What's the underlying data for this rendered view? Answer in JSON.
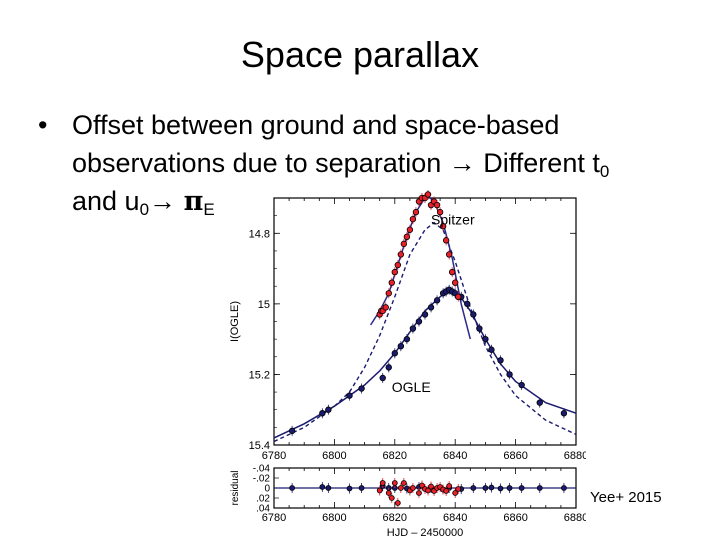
{
  "slide": {
    "title": "Space parallax",
    "bullet_line1": "Offset between ground and space-based",
    "bullet_line2_pre": "observations due to separation",
    "bullet_line2_post": "Different t",
    "t_sub": "0",
    "bullet_line3_pre": "and u",
    "u_sub": "0",
    "pi_symbol": "π",
    "pi_sub": "E",
    "arrow": "→",
    "credit": "Yee+ 2015"
  },
  "chart_data": [
    {
      "type": "line",
      "ylabel": "I(OGLE)",
      "xlim": [
        6780,
        6880
      ],
      "ylim": [
        15.4,
        14.7
      ],
      "y_inverted": true,
      "x_ticks": [
        "6780",
        "6800",
        "6820",
        "6840",
        "6860",
        "6880"
      ],
      "y_ticks": [
        "14.8",
        "15",
        "15.2",
        "15.4"
      ],
      "annotations": [
        "Spitzer",
        "OGLE"
      ],
      "series": [
        {
          "name": "Spitzer",
          "color": "#e8202a",
          "points": [
            [
              6815,
              15.03
            ],
            [
              6815.5,
              15.02
            ],
            [
              6816,
              15.02
            ],
            [
              6817,
              15.01
            ],
            [
              6818,
              14.97
            ],
            [
              6819,
              14.94
            ],
            [
              6820,
              14.91
            ],
            [
              6821,
              14.89
            ],
            [
              6822,
              14.86
            ],
            [
              6823,
              14.83
            ],
            [
              6824,
              14.81
            ],
            [
              6825,
              14.79
            ],
            [
              6826,
              14.76
            ],
            [
              6827,
              14.74
            ],
            [
              6828,
              14.71
            ],
            [
              6829,
              14.7
            ],
            [
              6830,
              14.7
            ],
            [
              6831,
              14.69
            ],
            [
              6832,
              14.72
            ],
            [
              6833,
              14.71
            ],
            [
              6834,
              14.72
            ],
            [
              6835,
              14.74
            ],
            [
              6836,
              14.78
            ],
            [
              6837,
              14.82
            ],
            [
              6838,
              14.86
            ],
            [
              6839,
              14.91
            ],
            [
              6840,
              14.94
            ],
            [
              6841,
              14.98
            ]
          ],
          "model": [
            [
              6812,
              15.06
            ],
            [
              6815,
              15.02
            ],
            [
              6818,
              14.97
            ],
            [
              6821,
              14.89
            ],
            [
              6824,
              14.81
            ],
            [
              6827,
              14.74
            ],
            [
              6830,
              14.7
            ],
            [
              6831,
              14.695
            ],
            [
              6833,
              14.71
            ],
            [
              6836,
              14.77
            ],
            [
              6839,
              14.87
            ],
            [
              6842,
              15.0
            ],
            [
              6845,
              15.1
            ]
          ]
        },
        {
          "name": "OGLE",
          "color": "#1a1a6e",
          "points": [
            [
              6786,
              15.36
            ],
            [
              6796,
              15.31
            ],
            [
              6798,
              15.3
            ],
            [
              6805,
              15.26
            ],
            [
              6809,
              15.24
            ],
            [
              6816,
              15.21
            ],
            [
              6818,
              15.18
            ],
            [
              6820,
              15.14
            ],
            [
              6822,
              15.12
            ],
            [
              6824,
              15.1
            ],
            [
              6826,
              15.07
            ],
            [
              6828,
              15.05
            ],
            [
              6830,
              15.03
            ],
            [
              6832,
              15.01
            ],
            [
              6834,
              14.99
            ],
            [
              6836,
              14.97
            ],
            [
              6837,
              14.965
            ],
            [
              6838,
              14.96
            ],
            [
              6839,
              14.965
            ],
            [
              6840,
              14.97
            ],
            [
              6842,
              14.98
            ],
            [
              6844,
              15.0
            ],
            [
              6846,
              15.03
            ],
            [
              6848,
              15.07
            ],
            [
              6850,
              15.1
            ],
            [
              6852,
              15.13
            ],
            [
              6855,
              15.16
            ],
            [
              6858,
              15.2
            ],
            [
              6862,
              15.23
            ],
            [
              6868,
              15.28
            ],
            [
              6876,
              15.31
            ]
          ],
          "model": [
            [
              6780,
              15.38
            ],
            [
              6790,
              15.34
            ],
            [
              6800,
              15.29
            ],
            [
              6810,
              15.23
            ],
            [
              6815,
              15.19
            ],
            [
              6820,
              15.14
            ],
            [
              6825,
              15.08
            ],
            [
              6830,
              15.02
            ],
            [
              6835,
              14.98
            ],
            [
              6838,
              14.96
            ],
            [
              6841,
              14.97
            ],
            [
              6845,
              15.02
            ],
            [
              6850,
              15.1
            ],
            [
              6855,
              15.17
            ],
            [
              6860,
              15.22
            ],
            [
              6870,
              15.28
            ],
            [
              6880,
              15.31
            ]
          ],
          "dashed_model": [
            [
              6780,
              15.39
            ],
            [
              6790,
              15.35
            ],
            [
              6800,
              15.29
            ],
            [
              6805,
              15.25
            ],
            [
              6810,
              15.18
            ],
            [
              6815,
              15.09
            ],
            [
              6820,
              14.98
            ],
            [
              6825,
              14.86
            ],
            [
              6830,
              14.79
            ],
            [
              6833,
              14.77
            ],
            [
              6836,
              14.79
            ],
            [
              6840,
              14.88
            ],
            [
              6845,
              15.01
            ],
            [
              6850,
              15.12
            ],
            [
              6855,
              15.2
            ],
            [
              6860,
              15.26
            ],
            [
              6870,
              15.33
            ],
            [
              6880,
              15.37
            ]
          ]
        }
      ]
    },
    {
      "type": "scatter",
      "xlabel": "HJD – 2450000",
      "ylabel": "residual",
      "xlim": [
        6780,
        6880
      ],
      "ylim": [
        0.04,
        -0.04
      ],
      "x_ticks": [
        "6780",
        "6800",
        "6820",
        "6840",
        "6860",
        "6880"
      ],
      "y_ticks": [
        "-.04",
        "-.02",
        "0",
        ".02",
        ".04"
      ],
      "series": [
        {
          "name": "Spitzer",
          "color": "#e8202a",
          "points": [
            [
              6815,
              0.005
            ],
            [
              6816,
              -0.01
            ],
            [
              6818,
              0.01
            ],
            [
              6819,
              0.02
            ],
            [
              6820,
              -0.01
            ],
            [
              6821,
              0.03
            ],
            [
              6822,
              0.0
            ],
            [
              6823,
              -0.01
            ],
            [
              6825,
              0.005
            ],
            [
              6826,
              0.0
            ],
            [
              6828,
              0.01
            ],
            [
              6829,
              -0.005
            ],
            [
              6830,
              0.002
            ],
            [
              6831,
              0.005
            ],
            [
              6832,
              -0.003
            ],
            [
              6833,
              0.006
            ],
            [
              6834,
              0.0
            ],
            [
              6835,
              -0.002
            ],
            [
              6836,
              0.003
            ],
            [
              6837,
              0.006
            ],
            [
              6838,
              -0.004
            ],
            [
              6840,
              0.01
            ],
            [
              6841,
              0.002
            ]
          ]
        },
        {
          "name": "OGLE",
          "color": "#1a1a6e",
          "points": [
            [
              6786,
              0.0
            ],
            [
              6796,
              -0.002
            ],
            [
              6798,
              0.0
            ],
            [
              6805,
              0.001
            ],
            [
              6809,
              0.0
            ],
            [
              6816,
              -0.004
            ],
            [
              6818,
              0.0
            ],
            [
              6820,
              0.0
            ],
            [
              6824,
              0.001
            ],
            [
              6828,
              -0.002
            ],
            [
              6832,
              0.0
            ],
            [
              6836,
              0.003
            ],
            [
              6838,
              0.0
            ],
            [
              6842,
              0.002
            ],
            [
              6846,
              0.0
            ],
            [
              6850,
              0.0
            ],
            [
              6852,
              -0.001
            ],
            [
              6855,
              0.001
            ],
            [
              6858,
              0.0
            ],
            [
              6862,
              0.0
            ],
            [
              6868,
              0.0
            ],
            [
              6876,
              0.0
            ]
          ]
        }
      ]
    }
  ]
}
